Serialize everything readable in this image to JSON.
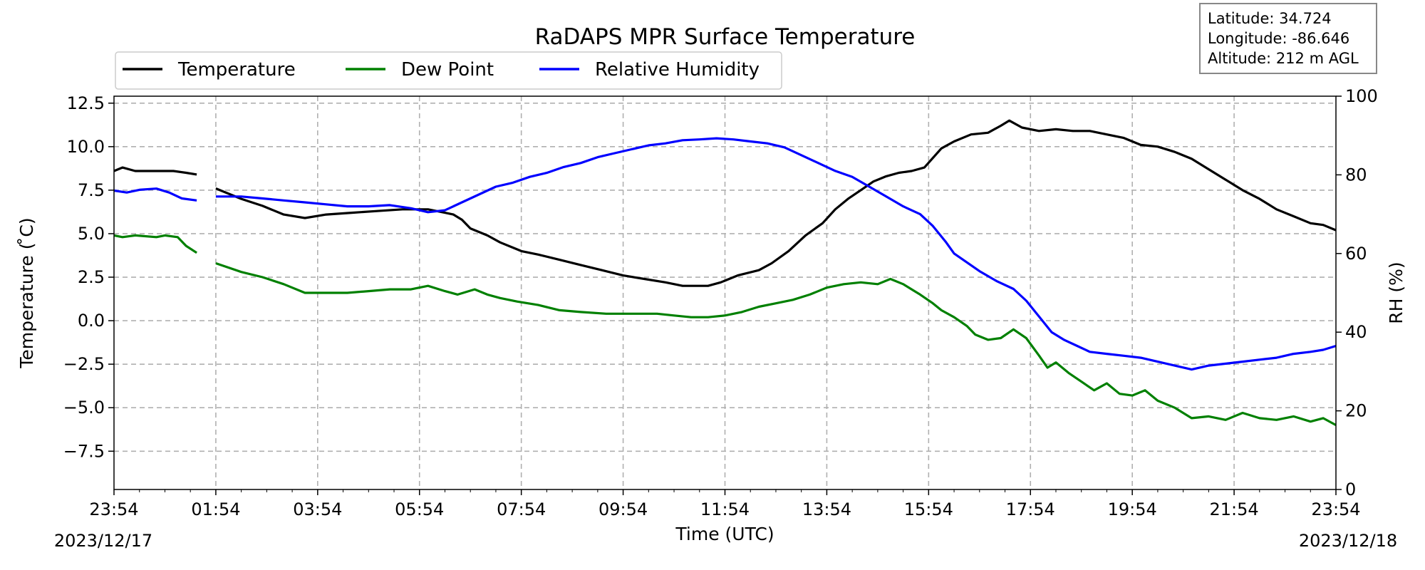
{
  "chart_data": {
    "type": "line",
    "title": "RaDAPS MPR Surface Temperature",
    "xlabel": "Time (UTC)",
    "ylabel": "Temperature ($^\\circ$C)",
    "ylabel_display": "Temperature ( ̊C)",
    "y2label": "RH (%)",
    "x_tick_labels": [
      "23:54",
      "01:54",
      "03:54",
      "05:54",
      "07:54",
      "09:54",
      "11:54",
      "13:54",
      "15:54",
      "17:54",
      "19:54",
      "21:54",
      "23:54"
    ],
    "x_start_date": "2023/12/17",
    "x_end_date": "2023/12/18",
    "y_ticks": [
      "12.5",
      "10.0",
      "7.5",
      "5.0",
      "2.5",
      "0.0",
      "−2.5",
      "−5.0",
      "−7.5"
    ],
    "y_tick_values": [
      12.5,
      10.0,
      7.5,
      5.0,
      2.5,
      0.0,
      -2.5,
      -5.0,
      -7.5
    ],
    "y2_ticks": [
      "100",
      "80",
      "60",
      "40",
      "20",
      "0"
    ],
    "y2_tick_values": [
      100,
      80,
      60,
      40,
      20,
      0
    ],
    "ylim": [
      -9.7,
      12.9
    ],
    "y2lim": [
      0,
      100
    ],
    "xlim": [
      "23:54",
      "23:54"
    ],
    "grid": true,
    "legend_position": "top-left",
    "info_box": [
      "Latitude: 34.724",
      "Longitude: -86.646",
      "Altitude: 212 m AGL"
    ],
    "series": [
      {
        "name": "Temperature",
        "axis": "left",
        "color": "#000000",
        "points": [
          [
            0,
            8.6
          ],
          [
            0.2,
            8.8
          ],
          [
            0.5,
            8.6
          ],
          [
            1.0,
            8.6
          ],
          [
            1.4,
            8.6
          ],
          [
            1.7,
            8.5
          ],
          [
            1.95,
            8.4
          ],
          null,
          [
            2.4,
            7.6
          ],
          [
            3.0,
            7.0
          ],
          [
            3.5,
            6.6
          ],
          [
            4.0,
            6.1
          ],
          [
            4.5,
            5.9
          ],
          [
            5.0,
            6.1
          ],
          [
            5.6,
            6.2
          ],
          [
            6.2,
            6.3
          ],
          [
            6.8,
            6.4
          ],
          [
            7.4,
            6.4
          ],
          [
            7.8,
            6.2
          ],
          [
            8.0,
            6.1
          ],
          [
            8.2,
            5.8
          ],
          [
            8.4,
            5.3
          ],
          [
            8.6,
            5.1
          ],
          [
            8.8,
            4.9
          ],
          [
            9.1,
            4.5
          ],
          [
            9.4,
            4.2
          ],
          [
            9.6,
            4.0
          ],
          [
            10.0,
            3.8
          ],
          [
            10.5,
            3.5
          ],
          [
            11.0,
            3.2
          ],
          [
            11.5,
            2.9
          ],
          [
            12.0,
            2.6
          ],
          [
            12.5,
            2.4
          ],
          [
            13.0,
            2.2
          ],
          [
            13.4,
            2.0
          ],
          [
            14.0,
            2.0
          ],
          [
            14.3,
            2.2
          ],
          [
            14.7,
            2.6
          ],
          [
            15.2,
            2.9
          ],
          [
            15.5,
            3.3
          ],
          [
            15.9,
            4.0
          ],
          [
            16.3,
            4.9
          ],
          [
            16.7,
            5.6
          ],
          [
            17.0,
            6.4
          ],
          [
            17.3,
            7.0
          ],
          [
            17.6,
            7.5
          ],
          [
            17.9,
            8.0
          ],
          [
            18.2,
            8.3
          ],
          [
            18.5,
            8.5
          ],
          [
            18.8,
            8.6
          ],
          [
            19.1,
            8.8
          ],
          [
            19.5,
            9.9
          ],
          [
            19.8,
            10.3
          ],
          [
            20.2,
            10.7
          ],
          [
            20.6,
            10.8
          ],
          [
            20.9,
            11.2
          ],
          [
            21.1,
            11.5
          ],
          [
            21.4,
            11.1
          ],
          [
            21.8,
            10.9
          ],
          [
            22.2,
            11.0
          ],
          [
            22.6,
            10.9
          ],
          [
            23.0,
            10.9
          ],
          [
            23.4,
            10.7
          ],
          [
            23.8,
            10.5
          ],
          [
            24.2,
            10.1
          ],
          [
            24.6,
            10.0
          ],
          [
            25.0,
            9.7
          ],
          [
            25.4,
            9.3
          ],
          [
            25.8,
            8.7
          ],
          [
            26.2,
            8.1
          ],
          [
            26.6,
            7.5
          ],
          [
            27.0,
            7.0
          ],
          [
            27.4,
            6.4
          ],
          [
            27.8,
            6.0
          ],
          [
            28.2,
            5.6
          ],
          [
            28.5,
            5.5
          ],
          [
            28.8,
            5.2
          ]
        ]
      },
      {
        "name": "Dew Point",
        "axis": "left",
        "color": "#008000",
        "points": [
          [
            0,
            4.9
          ],
          [
            0.2,
            4.8
          ],
          [
            0.5,
            4.9
          ],
          [
            1.0,
            4.8
          ],
          [
            1.2,
            4.9
          ],
          [
            1.5,
            4.8
          ],
          [
            1.7,
            4.3
          ],
          [
            1.95,
            3.9
          ],
          null,
          [
            2.4,
            3.3
          ],
          [
            3.0,
            2.8
          ],
          [
            3.5,
            2.5
          ],
          [
            4.0,
            2.1
          ],
          [
            4.5,
            1.6
          ],
          [
            5.0,
            1.6
          ],
          [
            5.5,
            1.6
          ],
          [
            6.0,
            1.7
          ],
          [
            6.5,
            1.8
          ],
          [
            7.0,
            1.8
          ],
          [
            7.4,
            2.0
          ],
          [
            7.8,
            1.7
          ],
          [
            8.1,
            1.5
          ],
          [
            8.5,
            1.8
          ],
          [
            8.8,
            1.5
          ],
          [
            9.1,
            1.3
          ],
          [
            9.5,
            1.1
          ],
          [
            10.0,
            0.9
          ],
          [
            10.5,
            0.6
          ],
          [
            11.0,
            0.5
          ],
          [
            11.6,
            0.4
          ],
          [
            12.2,
            0.4
          ],
          [
            12.8,
            0.4
          ],
          [
            13.2,
            0.3
          ],
          [
            13.6,
            0.2
          ],
          [
            14.0,
            0.2
          ],
          [
            14.4,
            0.3
          ],
          [
            14.8,
            0.5
          ],
          [
            15.2,
            0.8
          ],
          [
            15.6,
            1.0
          ],
          [
            16.0,
            1.2
          ],
          [
            16.4,
            1.5
          ],
          [
            16.8,
            1.9
          ],
          [
            17.2,
            2.1
          ],
          [
            17.6,
            2.2
          ],
          [
            18.0,
            2.1
          ],
          [
            18.3,
            2.4
          ],
          [
            18.6,
            2.1
          ],
          [
            18.8,
            1.8
          ],
          [
            19.0,
            1.5
          ],
          [
            19.3,
            1.0
          ],
          [
            19.5,
            0.6
          ],
          [
            19.8,
            0.2
          ],
          [
            20.1,
            -0.3
          ],
          [
            20.3,
            -0.8
          ],
          [
            20.6,
            -1.1
          ],
          [
            20.9,
            -1.0
          ],
          [
            21.2,
            -0.5
          ],
          [
            21.5,
            -1.0
          ],
          [
            21.8,
            -2.0
          ],
          [
            22.0,
            -2.7
          ],
          [
            22.2,
            -2.4
          ],
          [
            22.5,
            -3.0
          ],
          [
            22.8,
            -3.5
          ],
          [
            23.1,
            -4.0
          ],
          [
            23.4,
            -3.6
          ],
          [
            23.7,
            -4.2
          ],
          [
            24.0,
            -4.3
          ],
          [
            24.3,
            -4.0
          ],
          [
            24.6,
            -4.6
          ],
          [
            25.0,
            -5.0
          ],
          [
            25.4,
            -5.6
          ],
          [
            25.8,
            -5.5
          ],
          [
            26.2,
            -5.7
          ],
          [
            26.6,
            -5.3
          ],
          [
            27.0,
            -5.6
          ],
          [
            27.4,
            -5.7
          ],
          [
            27.8,
            -5.5
          ],
          [
            28.2,
            -5.8
          ],
          [
            28.5,
            -5.6
          ],
          [
            28.8,
            -6.0
          ]
        ]
      },
      {
        "name": "Relative Humidity",
        "axis": "right",
        "color": "#0000ff",
        "points": [
          [
            0,
            76
          ],
          [
            0.3,
            75.5
          ],
          [
            0.6,
            76.2
          ],
          [
            1.0,
            76.5
          ],
          [
            1.3,
            75.5
          ],
          [
            1.6,
            74.0
          ],
          [
            1.95,
            73.5
          ],
          null,
          [
            2.4,
            74.5
          ],
          [
            3.0,
            74.5
          ],
          [
            3.5,
            74.0
          ],
          [
            4.0,
            73.5
          ],
          [
            4.5,
            73.0
          ],
          [
            5.0,
            72.5
          ],
          [
            5.5,
            72.0
          ],
          [
            6.0,
            72.0
          ],
          [
            6.5,
            72.3
          ],
          [
            7.0,
            71.5
          ],
          [
            7.4,
            70.5
          ],
          [
            7.8,
            71.0
          ],
          [
            8.2,
            73.0
          ],
          [
            8.6,
            75.0
          ],
          [
            9.0,
            77.0
          ],
          [
            9.4,
            78.0
          ],
          [
            9.8,
            79.5
          ],
          [
            10.2,
            80.5
          ],
          [
            10.6,
            82.0
          ],
          [
            11.0,
            83.0
          ],
          [
            11.4,
            84.5
          ],
          [
            11.8,
            85.5
          ],
          [
            12.2,
            86.5
          ],
          [
            12.6,
            87.5
          ],
          [
            13.0,
            88.0
          ],
          [
            13.4,
            88.8
          ],
          [
            13.8,
            89.0
          ],
          [
            14.2,
            89.3
          ],
          [
            14.6,
            89.0
          ],
          [
            15.0,
            88.5
          ],
          [
            15.4,
            88.0
          ],
          [
            15.8,
            87.0
          ],
          [
            16.2,
            85.0
          ],
          [
            16.6,
            83.0
          ],
          [
            17.0,
            81.0
          ],
          [
            17.4,
            79.5
          ],
          [
            17.8,
            77.0
          ],
          [
            18.2,
            74.5
          ],
          [
            18.6,
            72.0
          ],
          [
            19.0,
            70.0
          ],
          [
            19.3,
            67.0
          ],
          [
            19.6,
            63.0
          ],
          [
            19.8,
            60.0
          ],
          [
            20.0,
            58.5
          ],
          [
            20.4,
            55.5
          ],
          [
            20.8,
            53.0
          ],
          [
            21.2,
            51.0
          ],
          [
            21.5,
            48.0
          ],
          [
            21.8,
            44.0
          ],
          [
            22.1,
            40.0
          ],
          [
            22.4,
            38.0
          ],
          [
            22.7,
            36.5
          ],
          [
            23.0,
            35.0
          ],
          [
            23.4,
            34.5
          ],
          [
            23.8,
            34.0
          ],
          [
            24.2,
            33.5
          ],
          [
            24.6,
            32.5
          ],
          [
            25.0,
            31.5
          ],
          [
            25.4,
            30.5
          ],
          [
            25.8,
            31.5
          ],
          [
            26.2,
            32.0
          ],
          [
            26.6,
            32.5
          ],
          [
            27.0,
            33.0
          ],
          [
            27.4,
            33.5
          ],
          [
            27.8,
            34.5
          ],
          [
            28.2,
            35.0
          ],
          [
            28.5,
            35.5
          ],
          [
            28.8,
            36.5
          ]
        ]
      }
    ]
  }
}
